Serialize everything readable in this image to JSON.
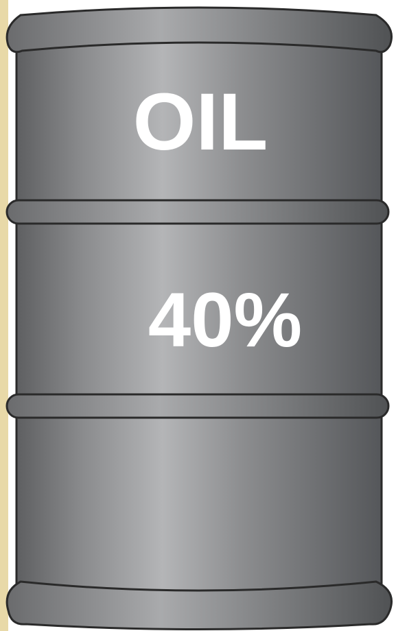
{
  "barrel": {
    "label": "OIL",
    "share": "40%"
  }
}
